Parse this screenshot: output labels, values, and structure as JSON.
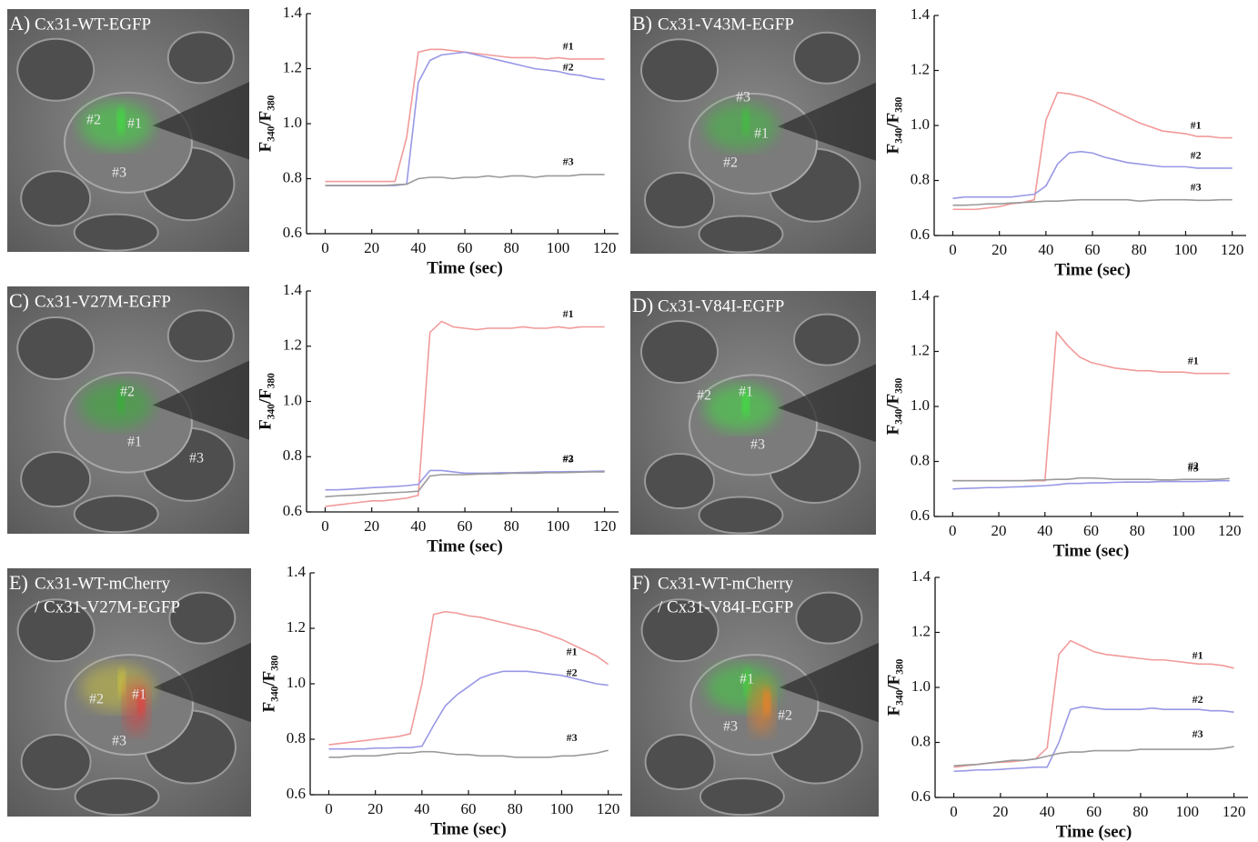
{
  "chart_data": [
    {
      "type": "line",
      "panel_label": "A)",
      "image_title": [
        "Cx31-WT-EGFP"
      ],
      "cell_labels": [
        "#1",
        "#2",
        "#3"
      ],
      "xlabel": "Time (sec)",
      "ylabel": "F₃₄₀/F₃₈₀",
      "x": [
        0,
        5,
        10,
        15,
        20,
        25,
        30,
        35,
        40,
        45,
        50,
        55,
        60,
        65,
        70,
        75,
        80,
        85,
        90,
        95,
        100,
        105,
        110,
        115,
        120
      ],
      "xlim": [
        -8,
        126
      ],
      "xticks": [
        0,
        20,
        40,
        60,
        80,
        100,
        120
      ],
      "ylim": [
        0.6,
        1.4
      ],
      "yticks": [
        0.6,
        0.8,
        {
          "value": 1,
          "label": "1.0"
        },
        1.2,
        1.4
      ],
      "series": [
        {
          "name": "#1",
          "color": "#f29a9a",
          "values": [
            0.79,
            0.79,
            0.79,
            0.79,
            0.79,
            0.79,
            0.79,
            0.95,
            1.26,
            1.27,
            1.27,
            1.265,
            1.26,
            1.255,
            1.25,
            1.245,
            1.24,
            1.24,
            1.24,
            1.235,
            1.24,
            1.235,
            1.235,
            1.235,
            1.235
          ]
        },
        {
          "name": "#2",
          "color": "#9898e6",
          "values": [
            0.775,
            0.775,
            0.775,
            0.775,
            0.775,
            0.775,
            0.775,
            0.78,
            1.15,
            1.23,
            1.25,
            1.255,
            1.26,
            1.25,
            1.24,
            1.23,
            1.22,
            1.21,
            1.2,
            1.195,
            1.19,
            1.18,
            1.175,
            1.165,
            1.16
          ]
        },
        {
          "name": "#3",
          "color": "#9a9a9a",
          "values": [
            0.775,
            0.775,
            0.775,
            0.775,
            0.775,
            0.775,
            0.778,
            0.78,
            0.8,
            0.805,
            0.805,
            0.8,
            0.805,
            0.805,
            0.81,
            0.805,
            0.81,
            0.81,
            0.805,
            0.81,
            0.81,
            0.81,
            0.815,
            0.815,
            0.815
          ]
        }
      ]
    },
    {
      "type": "line",
      "panel_label": "B)",
      "image_title": [
        "Cx31-V43M-EGFP"
      ],
      "cell_labels": [
        "#1",
        "#2",
        "#3"
      ],
      "xlabel": "Time (sec)",
      "ylabel": "F₃₄₀/F₃₈₀",
      "x": [
        0,
        5,
        10,
        15,
        20,
        25,
        30,
        35,
        40,
        45,
        50,
        55,
        60,
        65,
        70,
        75,
        80,
        85,
        90,
        95,
        100,
        105,
        110,
        115,
        120
      ],
      "xlim": [
        -8,
        126
      ],
      "xticks": [
        0,
        20,
        40,
        60,
        80,
        100,
        120
      ],
      "ylim": [
        0.6,
        1.4
      ],
      "yticks": [
        0.6,
        0.8,
        {
          "value": 1,
          "label": "1.0"
        },
        1.2,
        1.4
      ],
      "series": [
        {
          "name": "#1",
          "color": "#f29a9a",
          "values": [
            0.695,
            0.695,
            0.695,
            0.7,
            0.705,
            0.715,
            0.72,
            0.73,
            1.02,
            1.12,
            1.115,
            1.105,
            1.09,
            1.07,
            1.05,
            1.03,
            1.01,
            0.995,
            0.98,
            0.975,
            0.97,
            0.96,
            0.96,
            0.955,
            0.955
          ]
        },
        {
          "name": "#2",
          "color": "#9898e6",
          "values": [
            0.735,
            0.74,
            0.74,
            0.74,
            0.74,
            0.74,
            0.745,
            0.75,
            0.78,
            0.86,
            0.9,
            0.905,
            0.9,
            0.885,
            0.875,
            0.865,
            0.86,
            0.855,
            0.85,
            0.85,
            0.85,
            0.845,
            0.845,
            0.845,
            0.845
          ]
        },
        {
          "name": "#3",
          "color": "#9a9a9a",
          "values": [
            0.71,
            0.71,
            0.712,
            0.715,
            0.715,
            0.718,
            0.72,
            0.722,
            0.725,
            0.725,
            0.728,
            0.73,
            0.73,
            0.73,
            0.73,
            0.73,
            0.725,
            0.728,
            0.73,
            0.73,
            0.73,
            0.728,
            0.728,
            0.73,
            0.73
          ]
        }
      ]
    },
    {
      "type": "line",
      "panel_label": "C)",
      "image_title": [
        "Cx31-V27M-EGFP"
      ],
      "cell_labels": [
        "#1",
        "#2",
        "#3"
      ],
      "xlabel": "Time (sec)",
      "ylabel": "F₃₄₀/F₃₈₀",
      "x": [
        0,
        5,
        10,
        15,
        20,
        25,
        30,
        35,
        40,
        45,
        50,
        55,
        60,
        65,
        70,
        75,
        80,
        85,
        90,
        95,
        100,
        105,
        110,
        115,
        120
      ],
      "xlim": [
        -8,
        126
      ],
      "xticks": [
        0,
        20,
        40,
        60,
        80,
        100,
        120
      ],
      "ylim": [
        0.6,
        1.4
      ],
      "yticks": [
        0.6,
        0.8,
        {
          "value": 1,
          "label": "1.0"
        },
        1.2,
        1.4
      ],
      "series": [
        {
          "name": "#1",
          "color": "#f29a9a",
          "values": [
            0.62,
            0.625,
            0.63,
            0.635,
            0.64,
            0.64,
            0.645,
            0.65,
            0.66,
            1.25,
            1.29,
            1.27,
            1.265,
            1.26,
            1.265,
            1.265,
            1.265,
            1.27,
            1.265,
            1.265,
            1.27,
            1.265,
            1.27,
            1.27,
            1.27
          ]
        },
        {
          "name": "#2",
          "color": "#9898e6",
          "values": [
            0.68,
            0.68,
            0.682,
            0.685,
            0.688,
            0.69,
            0.692,
            0.695,
            0.7,
            0.75,
            0.75,
            0.745,
            0.74,
            0.74,
            0.74,
            0.742,
            0.742,
            0.743,
            0.744,
            0.745,
            0.745,
            0.746,
            0.746,
            0.747,
            0.748
          ]
        },
        {
          "name": "#3",
          "color": "#9a9a9a",
          "values": [
            0.655,
            0.658,
            0.66,
            0.662,
            0.665,
            0.668,
            0.67,
            0.672,
            0.675,
            0.73,
            0.735,
            0.735,
            0.735,
            0.737,
            0.738,
            0.738,
            0.74,
            0.74,
            0.74,
            0.742,
            0.742,
            0.743,
            0.744,
            0.745,
            0.745
          ]
        }
      ]
    },
    {
      "type": "line",
      "panel_label": "D)",
      "image_title": [
        "Cx31-V84I-EGFP"
      ],
      "cell_labels": [
        "#1",
        "#2",
        "#3"
      ],
      "xlabel": "Time (sec)",
      "ylabel": "F₃₄₀/F₃₈₀",
      "x": [
        0,
        5,
        10,
        15,
        20,
        25,
        30,
        35,
        40,
        45,
        50,
        55,
        60,
        65,
        70,
        75,
        80,
        85,
        90,
        95,
        100,
        105,
        110,
        115,
        120
      ],
      "xlim": [
        -8,
        126
      ],
      "xticks": [
        0,
        20,
        40,
        60,
        80,
        100,
        120
      ],
      "ylim": [
        0.6,
        1.4
      ],
      "yticks": [
        0.6,
        0.8,
        {
          "value": 1,
          "label": "1.0"
        },
        1.2,
        1.4
      ],
      "series": [
        {
          "name": "#1",
          "color": "#f29a9a",
          "values": [
            0.73,
            0.73,
            0.73,
            0.73,
            0.73,
            0.73,
            0.73,
            0.73,
            0.73,
            1.27,
            1.22,
            1.18,
            1.16,
            1.15,
            1.14,
            1.135,
            1.13,
            1.13,
            1.125,
            1.125,
            1.125,
            1.12,
            1.12,
            1.12,
            1.12
          ]
        },
        {
          "name": "#2",
          "color": "#9a9a9a",
          "values": [
            0.73,
            0.73,
            0.73,
            0.73,
            0.73,
            0.73,
            0.73,
            0.732,
            0.733,
            0.735,
            0.735,
            0.74,
            0.74,
            0.738,
            0.735,
            0.735,
            0.735,
            0.735,
            0.733,
            0.733,
            0.735,
            0.735,
            0.735,
            0.735,
            0.738
          ]
        },
        {
          "name": "#3",
          "color": "#9898e6",
          "values": [
            0.7,
            0.702,
            0.703,
            0.705,
            0.705,
            0.707,
            0.708,
            0.71,
            0.712,
            0.715,
            0.72,
            0.72,
            0.722,
            0.722,
            0.724,
            0.725,
            0.725,
            0.725,
            0.727,
            0.727,
            0.727,
            0.727,
            0.728,
            0.73,
            0.73
          ]
        }
      ]
    },
    {
      "type": "line",
      "panel_label": "E)",
      "image_title": [
        "Cx31-WT-mCherry",
        "/ Cx31-V27M-EGFP"
      ],
      "cell_labels": [
        "#1",
        "#2",
        "#3"
      ],
      "xlabel": "Time (sec)",
      "ylabel": "F₃₄₀/F₃₈₀",
      "x": [
        0,
        5,
        10,
        15,
        20,
        25,
        30,
        35,
        40,
        45,
        50,
        55,
        60,
        65,
        70,
        75,
        80,
        85,
        90,
        95,
        100,
        105,
        110,
        115,
        120
      ],
      "xlim": [
        -8,
        126
      ],
      "xticks": [
        0,
        20,
        40,
        60,
        80,
        100,
        120
      ],
      "ylim": [
        0.6,
        1.4
      ],
      "yticks": [
        0.6,
        0.8,
        {
          "value": 1,
          "label": "1.0"
        },
        1.2,
        1.4
      ],
      "series": [
        {
          "name": "#1",
          "color": "#f29a9a",
          "values": [
            0.78,
            0.785,
            0.79,
            0.795,
            0.8,
            0.805,
            0.81,
            0.82,
            1.0,
            1.25,
            1.26,
            1.255,
            1.245,
            1.24,
            1.23,
            1.22,
            1.21,
            1.2,
            1.19,
            1.175,
            1.16,
            1.14,
            1.12,
            1.1,
            1.07
          ]
        },
        {
          "name": "#2",
          "color": "#9898e6",
          "values": [
            0.765,
            0.765,
            0.765,
            0.765,
            0.768,
            0.768,
            0.77,
            0.77,
            0.775,
            0.85,
            0.92,
            0.96,
            0.99,
            1.02,
            1.035,
            1.045,
            1.045,
            1.045,
            1.04,
            1.035,
            1.03,
            1.02,
            1.01,
            1.0,
            0.995
          ]
        },
        {
          "name": "#3",
          "color": "#9a9a9a",
          "values": [
            0.735,
            0.735,
            0.74,
            0.74,
            0.74,
            0.745,
            0.75,
            0.75,
            0.755,
            0.755,
            0.75,
            0.745,
            0.745,
            0.74,
            0.74,
            0.74,
            0.735,
            0.735,
            0.735,
            0.735,
            0.74,
            0.74,
            0.745,
            0.75,
            0.76
          ]
        }
      ]
    },
    {
      "type": "line",
      "panel_label": "F)",
      "image_title": [
        "Cx31-WT-mCherry",
        "/ Cx31-V84I-EGFP"
      ],
      "cell_labels": [
        "#1",
        "#2",
        "#3"
      ],
      "xlabel": "Time (sec)",
      "ylabel": "F₃₄₀/F₃₈₀",
      "x": [
        0,
        5,
        10,
        15,
        20,
        25,
        30,
        35,
        40,
        45,
        50,
        55,
        60,
        65,
        70,
        75,
        80,
        85,
        90,
        95,
        100,
        105,
        110,
        115,
        120
      ],
      "xlim": [
        -8,
        126
      ],
      "xticks": [
        0,
        20,
        40,
        60,
        80,
        100,
        120
      ],
      "ylim": [
        0.6,
        1.4
      ],
      "yticks": [
        0.6,
        0.8,
        {
          "value": 1,
          "label": "1.0"
        },
        1.2,
        1.4
      ],
      "series": [
        {
          "name": "#1",
          "color": "#f29a9a",
          "values": [
            0.71,
            0.715,
            0.72,
            0.725,
            0.728,
            0.73,
            0.735,
            0.74,
            0.78,
            1.12,
            1.17,
            1.15,
            1.13,
            1.12,
            1.115,
            1.11,
            1.105,
            1.1,
            1.1,
            1.095,
            1.09,
            1.085,
            1.085,
            1.08,
            1.07
          ]
        },
        {
          "name": "#2",
          "color": "#9898e6",
          "values": [
            0.695,
            0.697,
            0.7,
            0.7,
            0.702,
            0.705,
            0.707,
            0.71,
            0.71,
            0.8,
            0.92,
            0.93,
            0.925,
            0.92,
            0.92,
            0.92,
            0.92,
            0.925,
            0.92,
            0.92,
            0.92,
            0.92,
            0.915,
            0.915,
            0.91
          ]
        },
        {
          "name": "#3",
          "color": "#9a9a9a",
          "values": [
            0.715,
            0.718,
            0.72,
            0.725,
            0.73,
            0.735,
            0.735,
            0.74,
            0.75,
            0.76,
            0.765,
            0.765,
            0.77,
            0.77,
            0.77,
            0.77,
            0.775,
            0.775,
            0.775,
            0.775,
            0.775,
            0.775,
            0.775,
            0.778,
            0.785
          ]
        }
      ]
    }
  ]
}
